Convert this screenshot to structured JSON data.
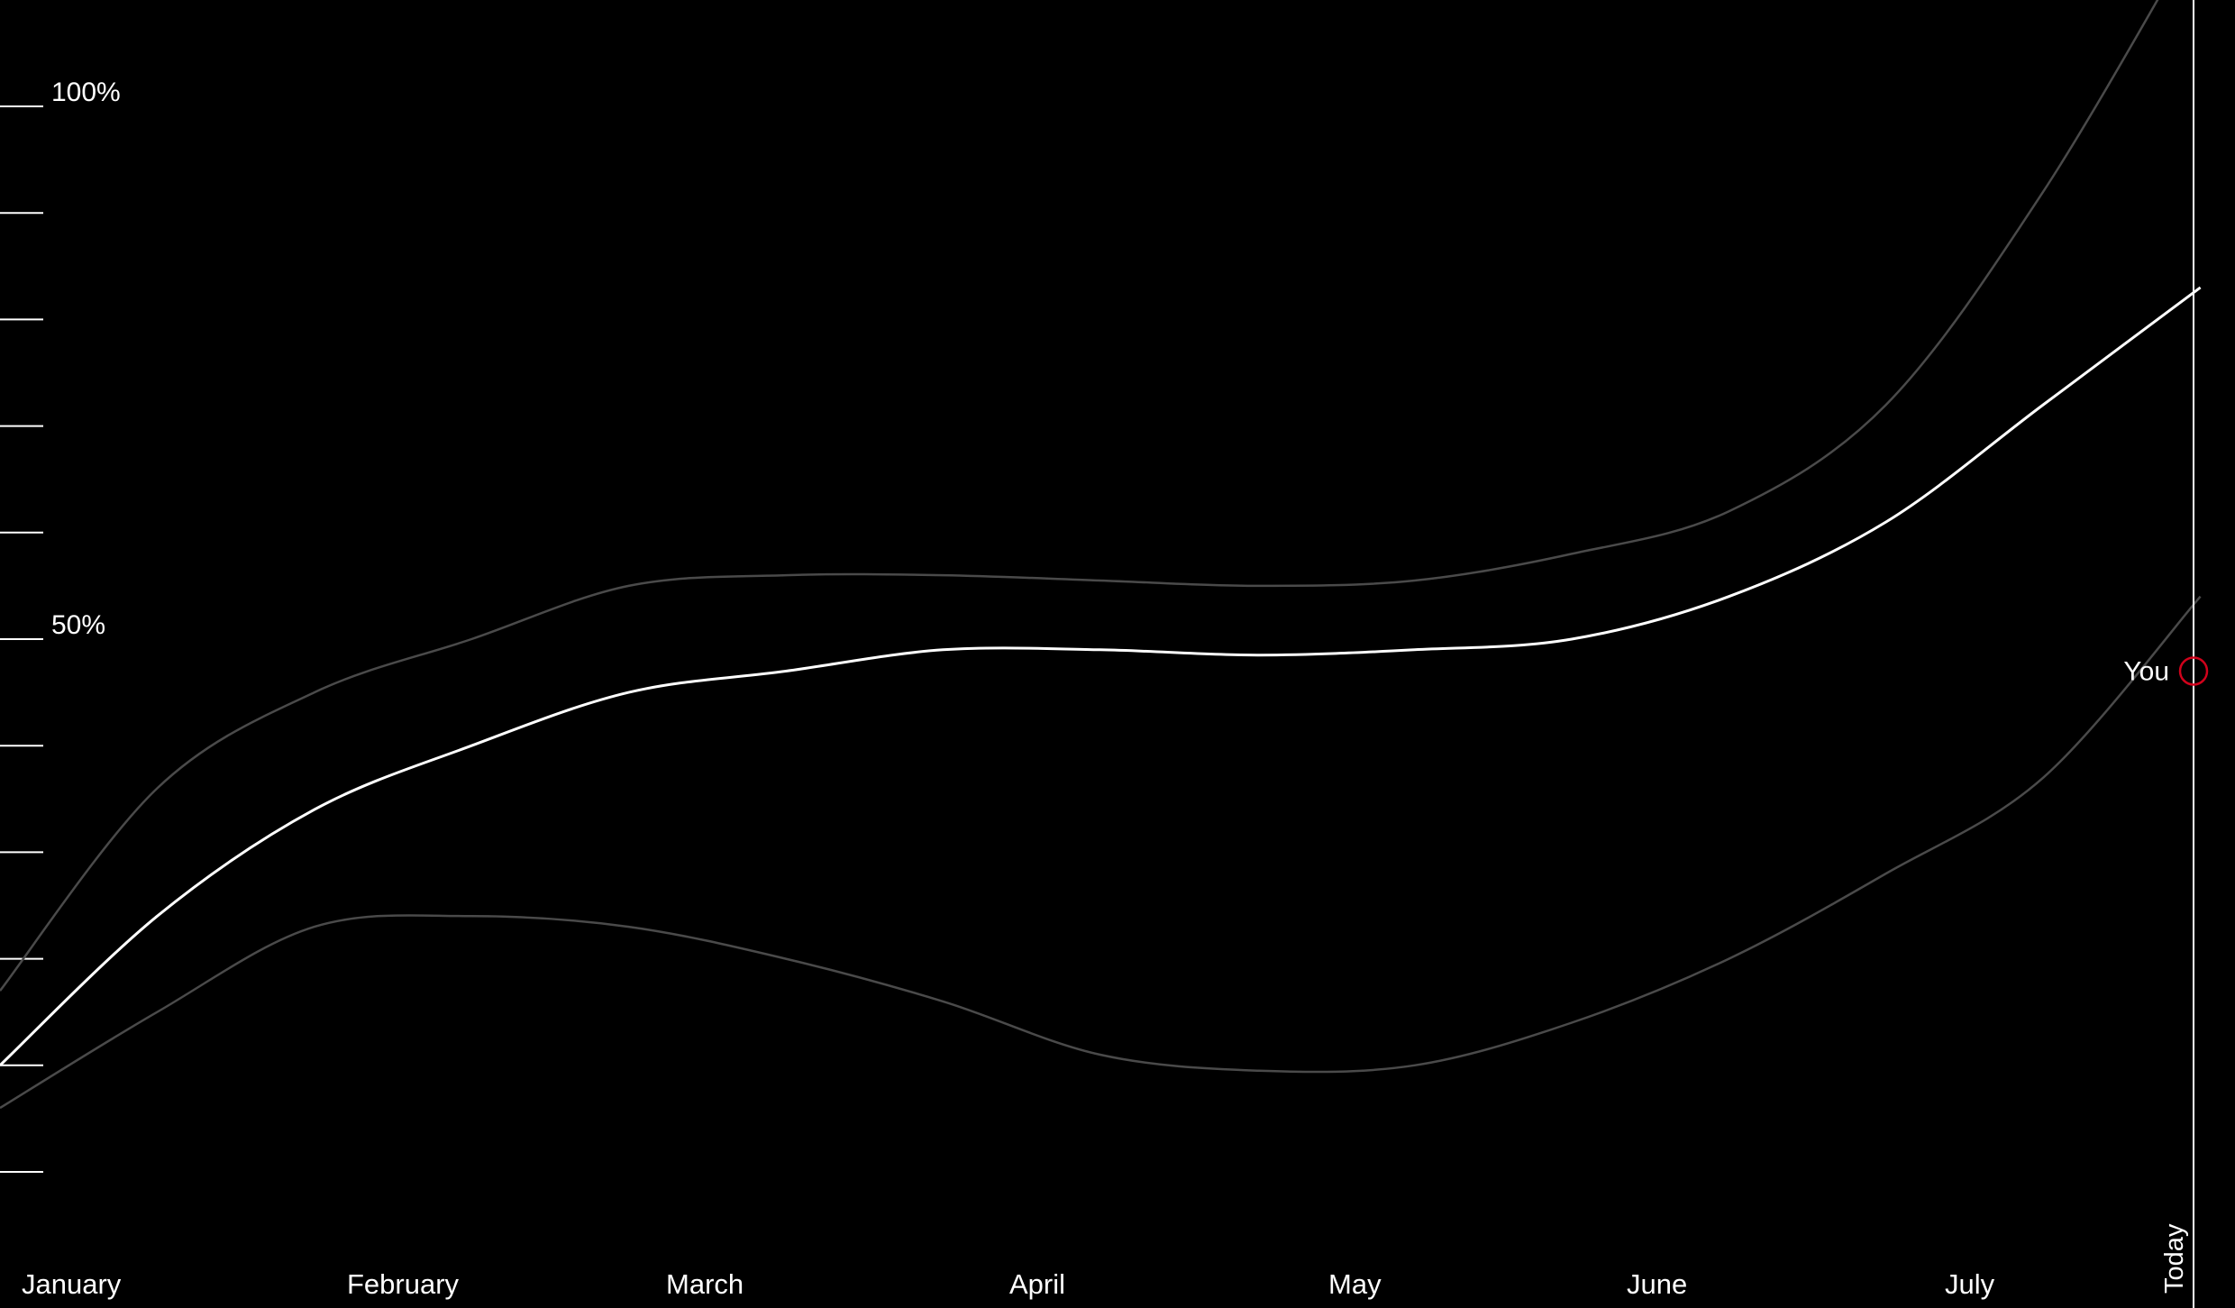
{
  "chart_data": {
    "type": "line",
    "x_axis": {
      "categories": [
        "January",
        "February",
        "March",
        "April",
        "May",
        "June",
        "July"
      ],
      "today_label": "Today"
    },
    "y_axis": {
      "ylim": [
        0,
        100
      ],
      "labeled_ticks": [
        {
          "value": 100,
          "label": "100%"
        },
        {
          "value": 50,
          "label": "50%"
        }
      ],
      "minor_tick_values": [
        0,
        10,
        20,
        30,
        40,
        60,
        70,
        80,
        90
      ]
    },
    "series": [
      {
        "id": "upper-band",
        "color": "#4a4a4a",
        "x": [
          0,
          0.5,
          1,
          1.5,
          2,
          2.5,
          3,
          3.5,
          4,
          4.5,
          5,
          5.5,
          6,
          6.5,
          7
        ],
        "values": [
          17,
          36,
          45,
          50,
          55,
          56,
          56,
          55.5,
          55,
          55.5,
          58,
          62,
          72,
          92,
          117
        ]
      },
      {
        "id": "median",
        "color": "#ffffff",
        "x": [
          0,
          0.5,
          1,
          1.5,
          2,
          2.5,
          3,
          3.5,
          4,
          4.5,
          5,
          5.5,
          6,
          6.5,
          7
        ],
        "values": [
          10,
          24,
          34,
          40,
          45,
          47,
          49,
          49,
          48.5,
          49,
          50,
          54,
          61,
          72,
          83
        ]
      },
      {
        "id": "lower-band",
        "color": "#4a4a4a",
        "x": [
          0,
          0.5,
          1,
          1.5,
          2,
          2.5,
          3,
          3.5,
          4,
          4.5,
          5,
          5.5,
          6,
          6.5,
          7
        ],
        "values": [
          6,
          15,
          23,
          24,
          23,
          20,
          16,
          11,
          9.5,
          10,
          14,
          20,
          28,
          37,
          54
        ]
      }
    ],
    "markers": [
      {
        "label": "You",
        "x": 6.85,
        "value": 47,
        "color": "#d0021b"
      }
    ]
  }
}
